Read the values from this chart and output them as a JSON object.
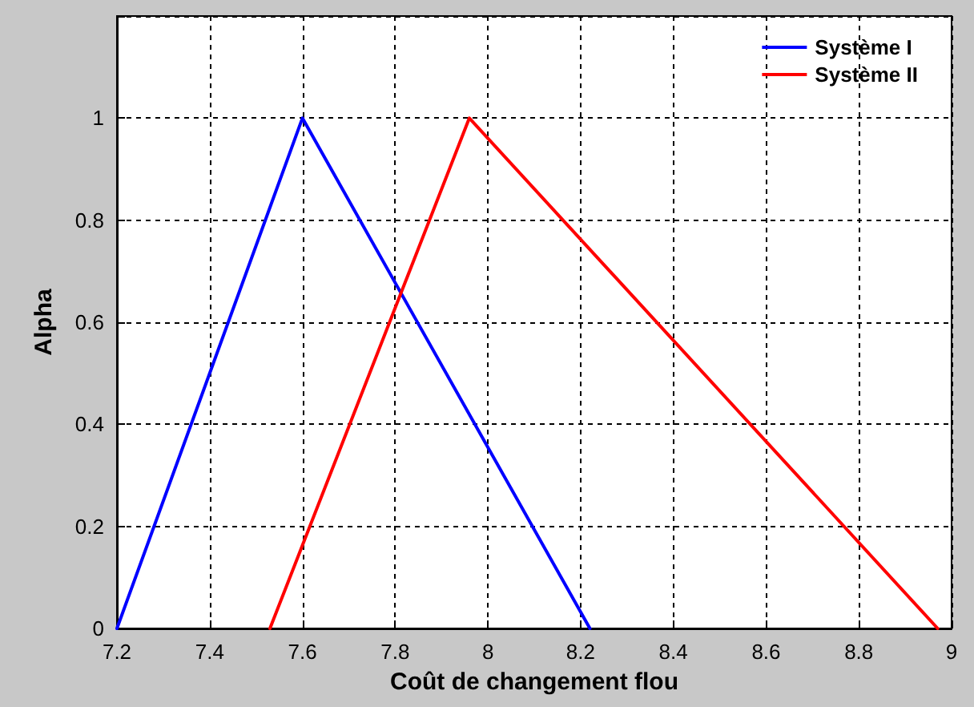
{
  "chart_data": {
    "type": "line",
    "xlabel": "Coût de changement flou",
    "ylabel": "Alpha",
    "series": [
      {
        "name": "Système I",
        "color": "#0000ff",
        "x": [
          7.2,
          7.6,
          8.22
        ],
        "values": [
          0,
          1,
          0
        ]
      },
      {
        "name": "Système II",
        "color": "#ff0000",
        "x": [
          7.53,
          7.96,
          8.97
        ],
        "values": [
          0,
          1,
          0
        ]
      }
    ],
    "xlim": [
      7.2,
      9
    ],
    "xticks": [
      7.2,
      7.4,
      7.6,
      7.8,
      8,
      8.2,
      8.4,
      8.6,
      8.8,
      9
    ],
    "ylim": [
      0,
      1.2
    ],
    "yticks": [
      0,
      0.2,
      0.4,
      0.6,
      0.8,
      1,
      {
        "value": 1.2,
        "label": null
      }
    ],
    "grid": true,
    "legend": "top right",
    "marker": "none",
    "line_style": "solid"
  }
}
